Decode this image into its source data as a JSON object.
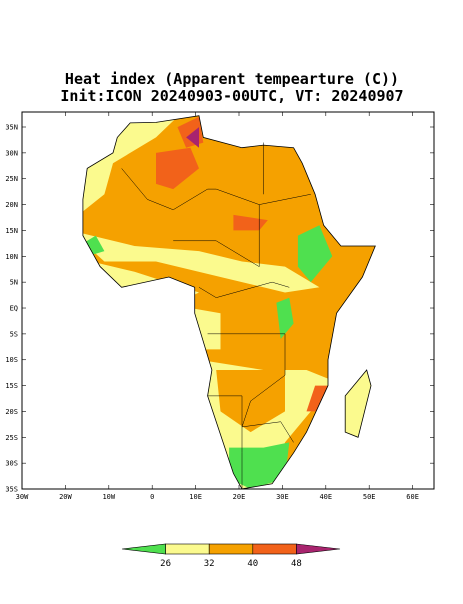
{
  "header": {
    "title": "Heat index (Apparent tempearture (C))",
    "subtitle": "Init:ICON 20240903-00UTC, VT: 20240907"
  },
  "map": {
    "lat_labels": [
      "35N",
      "30N",
      "25N",
      "20N",
      "15N",
      "10N",
      "5N",
      "EQ",
      "5S",
      "10S",
      "15S",
      "20S",
      "25S",
      "30S",
      "35S"
    ],
    "lon_labels": [
      "30W",
      "20W",
      "10W",
      "0",
      "10E",
      "20E",
      "30E",
      "40E",
      "50E",
      "60E"
    ]
  },
  "colorbar": {
    "labels": [
      "26",
      "32",
      "40",
      "48"
    ],
    "colors": [
      "#4fe04f",
      "#fbfa8e",
      "#f5a100",
      "#f2621a",
      "#a8246e"
    ]
  }
}
